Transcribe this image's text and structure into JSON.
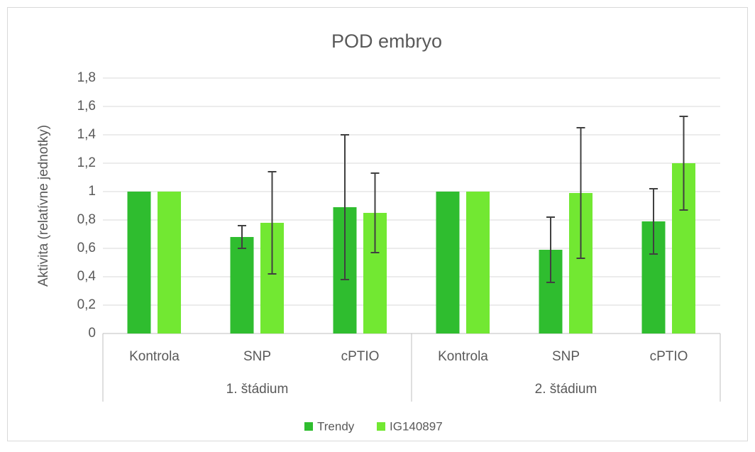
{
  "chart_data": {
    "type": "bar",
    "title": "POD embryo",
    "y_label": "Aktivita (relatívne jednotky)",
    "groups": [
      {
        "label": "1. štádium",
        "categories": [
          "Kontrola",
          "SNP",
          "cPTIO"
        ]
      },
      {
        "label": "2. štádium",
        "categories": [
          "Kontrola",
          "SNP",
          "cPTIO"
        ]
      }
    ],
    "series": [
      {
        "name": "Trendy",
        "color": "#2fbd2f",
        "values": [
          1,
          0.68,
          0.89,
          1,
          0.59,
          0.79
        ],
        "errors": [
          0,
          0.08,
          0.51,
          0,
          0.23,
          0.23
        ]
      },
      {
        "name": "IG140897",
        "color": "#72e832",
        "values": [
          1,
          0.78,
          0.85,
          1,
          0.99,
          1.2
        ],
        "errors": [
          0,
          0.36,
          0.28,
          0,
          0.46,
          0.33
        ]
      }
    ],
    "ylim": [
      0,
      1.8
    ],
    "yticks": [
      0,
      {
        "value": 0.2,
        "label": "0,2"
      },
      {
        "value": 0.4,
        "label": "0,4"
      },
      {
        "value": 0.6,
        "label": "0,6"
      },
      {
        "value": 0.8,
        "label": "0,8"
      },
      1,
      {
        "value": 1.2,
        "label": "1,2"
      },
      {
        "value": 1.4,
        "label": "1,4"
      },
      {
        "value": 1.6,
        "label": "1,6"
      },
      {
        "value": 1.8,
        "label": "1,8"
      }
    ],
    "grid": true
  }
}
